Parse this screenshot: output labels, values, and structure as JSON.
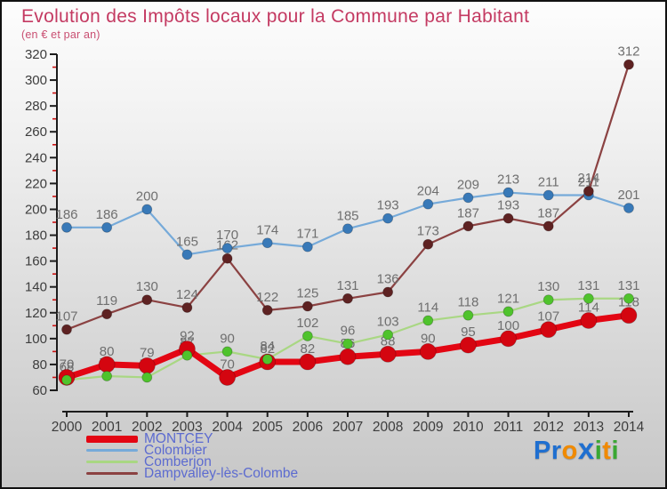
{
  "header": {
    "title": "Evolution des Impôts locaux pour la Commune par Habitant",
    "subtitle": "(en € et par an)",
    "title_color": "#c43a62"
  },
  "chart_data": {
    "type": "line",
    "x": [
      2000,
      2001,
      2002,
      2003,
      2004,
      2005,
      2006,
      2007,
      2008,
      2009,
      2010,
      2011,
      2012,
      2013,
      2014
    ],
    "series": [
      {
        "name": "MONTCEY",
        "values": [
          70,
          80,
          79,
          92,
          70,
          82,
          82,
          86,
          88,
          90,
          95,
          100,
          107,
          114,
          118
        ],
        "line_color": "#e30613",
        "dot_color": "#d40510",
        "line_width": 7,
        "dot_radius": 9
      },
      {
        "name": "Colombier",
        "values": [
          186,
          186,
          200,
          165,
          170,
          174,
          171,
          185,
          193,
          204,
          209,
          213,
          211,
          211,
          201
        ],
        "line_color": "#76aad9",
        "dot_color": "#3879b8",
        "line_width": 2.2,
        "dot_radius": 5.5
      },
      {
        "name": "Comberjon",
        "values": [
          68,
          71,
          70,
          87,
          90,
          84,
          102,
          96,
          103,
          114,
          118,
          121,
          130,
          131,
          131
        ],
        "line_color": "#a9d783",
        "dot_color": "#4fc32c",
        "line_width": 2.2,
        "dot_radius": 5.5
      },
      {
        "name": "Dampvalley-lès-Colombe",
        "values": [
          107,
          119,
          130,
          124,
          162,
          122,
          125,
          131,
          136,
          173,
          187,
          193,
          187,
          214,
          312
        ],
        "line_color": "#8b4242",
        "dot_color": "#5e2222",
        "line_width": 2.2,
        "dot_radius": 5.5
      }
    ],
    "title": "Evolution des Impôts locaux pour la Commune par Habitant",
    "subtitle": "(en € et par an)",
    "xlabel": "",
    "ylabel": "",
    "ylim": [
      60,
      320
    ],
    "ytick_step": 20,
    "minor_tick_step": 10,
    "grid": false,
    "legend_position": "bottom-left",
    "axis_color": "#1c1c1c",
    "tick_label_color": "#3d3d3d",
    "minor_tick_color": "#cc1111",
    "data_label_color": "#6f6f6f"
  },
  "legend": {
    "text_color": "#5c6bd0"
  },
  "logo": {
    "name": "Proxiti",
    "letters": [
      {
        "ch": "P",
        "color": "#1f6fd0",
        "x": false
      },
      {
        "ch": "r",
        "color": "#1f6fd0",
        "x": false
      },
      {
        "ch": "o",
        "color": "#f08a00",
        "x": false
      },
      {
        "ch": "x",
        "color": "#1f6fd0",
        "x": true
      },
      {
        "ch": "i",
        "color": "#3aa832",
        "x": false
      },
      {
        "ch": "t",
        "color": "#f08a00",
        "x": false
      },
      {
        "ch": "i",
        "color": "#3aa832",
        "x": false
      }
    ]
  }
}
